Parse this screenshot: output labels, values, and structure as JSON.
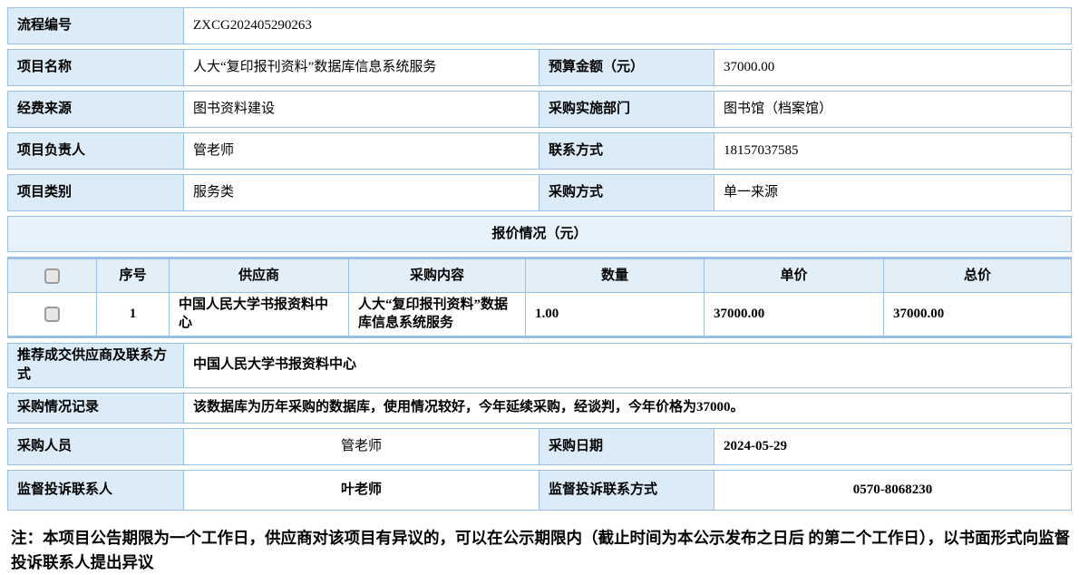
{
  "colors": {
    "label_bg": "#dcebf8",
    "band_bg": "#e7f2fb",
    "border": "#99c1e6",
    "checkbox_bg": "#e7e7e7"
  },
  "form": {
    "row1": {
      "label": "流程编号",
      "value": "ZXCG202405290263"
    },
    "row2": {
      "label1": "项目名称",
      "value1": "人大“复印报刊资料”数据库信息系统服务",
      "label2": "预算金额（元）",
      "value2": "37000.00"
    },
    "row3": {
      "label1": "经费来源",
      "value1": "图书资料建设",
      "label2": "采购实施部门",
      "value2": "图书馆（档案馆）"
    },
    "row4": {
      "label1": "项目负责人",
      "value1": "管老师",
      "label2": "联系方式",
      "value2": "18157037585"
    },
    "row5": {
      "label1": "项目类别",
      "value1": "服务类",
      "label2": "采购方式",
      "value2": "单一来源"
    }
  },
  "quote": {
    "section_title": "报价情况（元）",
    "headers": {
      "seq": "序号",
      "supplier": "供应商",
      "content": "采购内容",
      "qty": "数量",
      "unit_price": "单价",
      "total_price": "总价"
    },
    "row": {
      "seq": "1",
      "supplier": "中国人民大学书报资料中心",
      "content": "人大“复印报刊资料”数据库信息系统服务",
      "qty": "1.00",
      "unit_price": "37000.00",
      "total_price": "37000.00"
    }
  },
  "summary": {
    "recommended": {
      "label": "推荐成交供应商及联系方式",
      "value": "中国人民大学书报资料中心"
    },
    "record": {
      "label": "采购情况记录",
      "value": "该数据库为历年采购的数据库，使用情况较好，今年延续采购，经谈判，今年价格为37000。"
    },
    "buyer": {
      "label": "采购人员",
      "value": "管老师"
    },
    "date": {
      "label": "采购日期",
      "value": "2024-05-29"
    },
    "complaint_contact": {
      "label": "监督投诉联系人",
      "value": "叶老师"
    },
    "complaint_phone": {
      "label": "监督投诉联系方式",
      "value": "0570-8068230"
    }
  },
  "note": "注：本项目公告期限为一个工作日，供应商对该项目有异议的，可以在公示期限内（截止时间为本公示发布之日后 的第二个工作日），以书面形式向监督投诉联系人提出异议"
}
